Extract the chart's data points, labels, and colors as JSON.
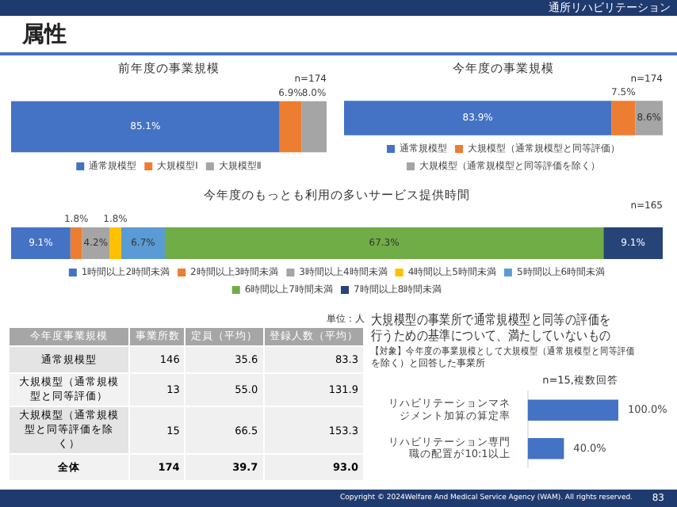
{
  "chart_data": [
    {
      "type": "other",
      "title": "属性",
      "annotations": [
        "通所リハビリテーション",
        "Copyright © 2024Welfare And Medical Service Agency (WAM). All rights reserved.",
        "83"
      ]
    },
    {
      "type": "bar",
      "title": "前年度の事業規模",
      "orientation": "horizontal",
      "stacked": true,
      "categories": [
        null
      ],
      "legend": "bottom",
      "annotations": [
        "n=174"
      ],
      "series": [
        {
          "name": "通常規模型",
          "color": "#4472c4",
          "values": [
            85.1
          ],
          "value_labels": [
            "85.1%"
          ]
        },
        {
          "name": "大規模型Ⅰ",
          "color": "#ed7d31",
          "values": [
            6.9
          ],
          "value_labels": [
            "6.9%"
          ]
        },
        {
          "name": "大規模型Ⅱ",
          "color": "#a5a5a5",
          "values": [
            8.0
          ],
          "value_labels": [
            "8.0%"
          ]
        }
      ]
    },
    {
      "type": "bar",
      "title": "今年度の事業規模",
      "orientation": "horizontal",
      "stacked": true,
      "categories": [
        null
      ],
      "legend": "bottom",
      "annotations": [
        "n=174"
      ],
      "series": [
        {
          "name": "通常規模型",
          "color": "#4472c4",
          "values": [
            83.9
          ],
          "value_labels": [
            "83.9%"
          ]
        },
        {
          "name": "大規模型（通常規模型と同等評価）",
          "color": "#ed7d31",
          "values": [
            7.5
          ],
          "value_labels": [
            "7.5%"
          ]
        },
        {
          "name": "大規模型（通常規模型と同等評価を除く）",
          "color": "#a5a5a5",
          "values": [
            8.6
          ],
          "value_labels": [
            "8.6%"
          ]
        }
      ]
    },
    {
      "type": "bar",
      "title": "今年度のもっとも利用の多いサービス提供時間",
      "orientation": "horizontal",
      "stacked": true,
      "categories": [
        null
      ],
      "legend": "bottom",
      "annotations": [
        "n=165"
      ],
      "series": [
        {
          "name": "1時間以上2時間未満",
          "color": "#4472c4",
          "values": [
            9.1
          ],
          "value_labels": [
            "9.1%"
          ]
        },
        {
          "name": "2時間以上3時間未満",
          "color": "#ed7d31",
          "values": [
            1.8
          ],
          "value_labels": [
            "1.8%"
          ]
        },
        {
          "name": "3時間以上4時間未満",
          "color": "#a5a5a5",
          "values": [
            4.2
          ],
          "value_labels": [
            "4.2%"
          ]
        },
        {
          "name": "4時間以上5時間未満",
          "color": "#ffc000",
          "values": [
            1.8
          ],
          "value_labels": [
            "1.8%"
          ]
        },
        {
          "name": "5時間以上6時間未満",
          "color": "#5b9bd5",
          "values": [
            6.7
          ],
          "value_labels": [
            "6.7%"
          ]
        },
        {
          "name": "6時間以上7時間未満",
          "color": "#70ad47",
          "values": [
            67.3
          ],
          "value_labels": [
            "67.3%"
          ]
        },
        {
          "name": "7時間以上8時間未満",
          "color": "#264478",
          "values": [
            9.1
          ],
          "value_labels": [
            "9.1%"
          ]
        }
      ]
    },
    {
      "type": "other",
      "ylabel": "今年度事業規模",
      "annotations": [
        "単位：人"
      ],
      "categories": [
        "通常規模型",
        "大規模型（通常規模型と同等評価）",
        "大規模型（通常規模型と同等評価を除く）",
        "全体"
      ],
      "series": [
        {
          "name": "事業所数",
          "color": "#f0f0f0",
          "values": [
            146,
            13,
            15,
            174
          ],
          "value_labels": [
            "146",
            "13",
            "15",
            "174"
          ]
        },
        {
          "name": "定員（平均）",
          "color": "#f0f0f0",
          "values": [
            35.6,
            55.0,
            66.5,
            39.7
          ],
          "value_labels": [
            "35.6",
            "55.0",
            "66.5",
            "39.7"
          ]
        },
        {
          "name": "登録人数（平均）",
          "color": "#f0f0f0",
          "values": [
            83.3,
            131.9,
            153.3,
            93.0
          ],
          "value_labels": [
            "83.3",
            "131.9",
            "153.3",
            "93.0"
          ]
        }
      ]
    },
    {
      "type": "bar",
      "title": "大規模型の事業所で通常規模型と同等の評価を行うための基準について、満たしていないもの",
      "subtitle": "【対象】今年度の事業規模として大規模型（通常規模型と同等評価を除く）と回答した事業所",
      "orientation": "horizontal",
      "categories": [
        "リハビリテーションマネジメント加算の算定率",
        "リハビリテーション専門職の配置が10:1以上"
      ],
      "color": "#4472c4",
      "values": [
        100.0,
        40.0
      ],
      "value_labels": [
        "100.0%",
        "40.0%"
      ],
      "annotations": [
        "n=15,複数回答"
      ]
    }
  ]
}
